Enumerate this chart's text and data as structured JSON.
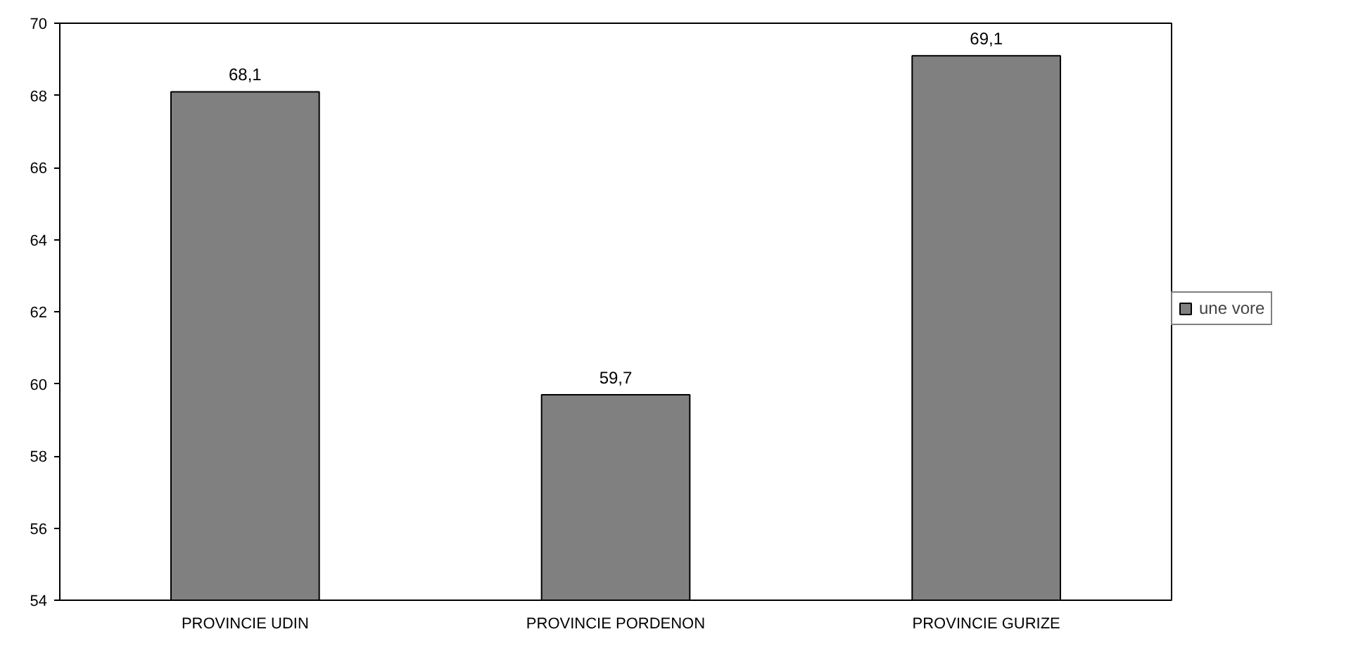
{
  "chart_data": {
    "type": "bar",
    "categories": [
      "PROVINCIE UDIN",
      "PROVINCIE PORDENON",
      "PROVINCIE GURIZE"
    ],
    "series": [
      {
        "name": "une vore",
        "color": "#808080",
        "values": [
          68.1,
          59.7,
          69.1
        ],
        "value_labels": [
          "68,1",
          "59,7",
          "69,1"
        ]
      }
    ],
    "ylim": [
      54,
      70
    ],
    "yticks": [
      54,
      56,
      58,
      60,
      62,
      64,
      66,
      68,
      70
    ],
    "grid": false,
    "legend": "right"
  }
}
